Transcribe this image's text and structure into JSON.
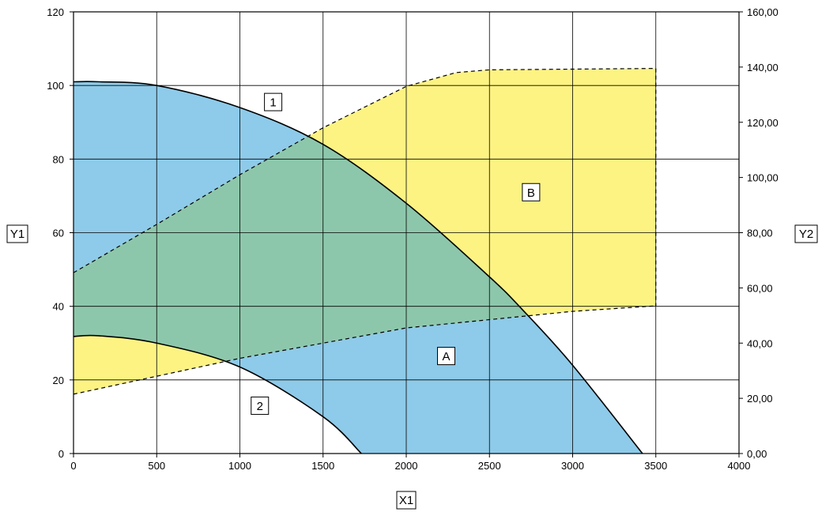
{
  "chart_data": {
    "type": "area",
    "xlabel": "X1",
    "ylabel": "Y1",
    "y2label": "Y2",
    "xlim": [
      0,
      4000
    ],
    "ylim": [
      0,
      120
    ],
    "y2lim": [
      0,
      160
    ],
    "xticks": [
      "0",
      "500",
      "1000",
      "1500",
      "2000",
      "2500",
      "3000",
      "3500",
      "4000"
    ],
    "yticks": [
      "0",
      "20",
      "40",
      "60",
      "80",
      "100",
      "120"
    ],
    "y2ticks": [
      "0,00",
      "20,00",
      "40,00",
      "60,00",
      "80,00",
      "100,00",
      "120,00",
      "140,00",
      "160,00"
    ],
    "grid": true,
    "colors": {
      "region_a": "#8ecae9",
      "region_b": "#fdf383",
      "overlap": "#8dc7ab"
    },
    "curves": [
      {
        "name": "1",
        "style": "solid",
        "x": [
          0,
          150,
          500,
          1000,
          1500,
          2000,
          2500,
          2700,
          3000,
          3420
        ],
        "y": [
          101,
          101,
          100,
          94,
          84,
          68,
          48,
          39,
          24,
          0
        ]
      },
      {
        "name": "2",
        "style": "solid",
        "x": [
          0,
          150,
          500,
          1000,
          1500,
          1730
        ],
        "y": [
          31.8,
          32,
          30,
          23.5,
          10,
          0
        ]
      }
    ],
    "envelope_B": {
      "style": "dashed",
      "axis": "y2",
      "upper": {
        "x": [
          0,
          500,
          1000,
          1500,
          2000,
          2300,
          2500,
          3500
        ],
        "y": [
          65.5,
          83,
          101,
          118,
          133,
          138,
          139,
          139.5
        ]
      },
      "lower": {
        "x": [
          0,
          1000,
          2000,
          3000,
          3500
        ],
        "y": [
          21.5,
          34.5,
          45.5,
          51.5,
          53.5
        ]
      }
    },
    "annotations": [
      {
        "text": "1",
        "x": 1200,
        "y": 95.5
      },
      {
        "text": "2",
        "x": 1120,
        "y": 13
      },
      {
        "text": "A",
        "x": 2240,
        "y": 26.5
      },
      {
        "text": "B",
        "x": 2750,
        "y": 71
      }
    ]
  }
}
